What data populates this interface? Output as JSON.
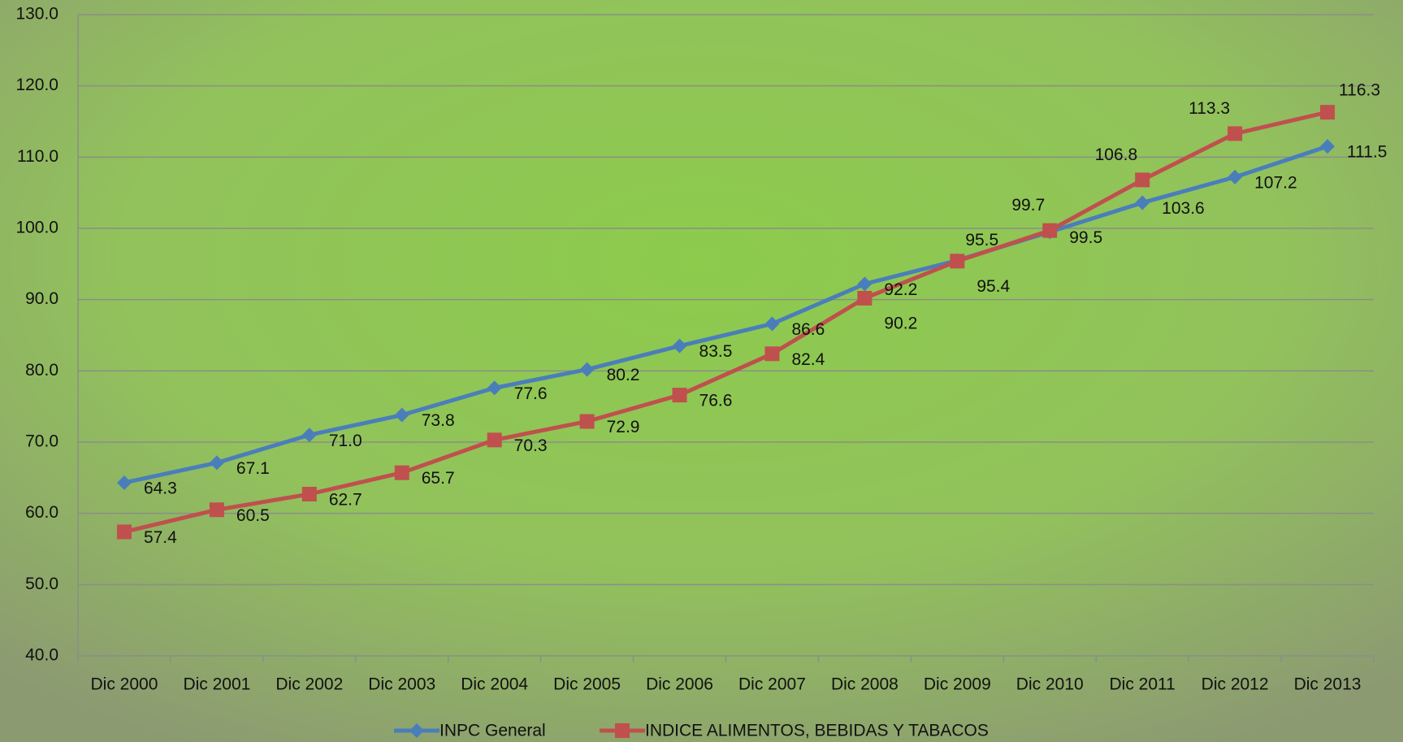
{
  "chart_data": {
    "type": "line",
    "categories": [
      "Dic 2000",
      "Dic 2001",
      "Dic 2002",
      "Dic 2003",
      "Dic 2004",
      "Dic 2005",
      "Dic 2006",
      "Dic 2007",
      "Dic 2008",
      "Dic 2009",
      "Dic 2010",
      "Dic 2011",
      "Dic 2012",
      "Dic 2013"
    ],
    "series": [
      {
        "name": "INPC General",
        "color": "#4a7ebb",
        "marker": "diamond",
        "values": [
          64.3,
          67.1,
          71.0,
          73.8,
          77.6,
          80.2,
          83.5,
          86.6,
          92.2,
          95.5,
          99.5,
          103.6,
          107.2,
          111.5
        ],
        "value_labels": [
          "64.3",
          "67.1",
          "71.0",
          "73.8",
          "77.6",
          "80.2",
          "83.5",
          "86.6",
          "92.2",
          "95.5",
          "99.5",
          "103.6",
          "107.2",
          "111.5"
        ]
      },
      {
        "name": "INDICE ALIMENTOS, BEBIDAS Y TABACOS",
        "color": "#c0504d",
        "marker": "square",
        "values": [
          57.4,
          60.5,
          62.7,
          65.7,
          70.3,
          72.9,
          76.6,
          82.4,
          90.2,
          95.4,
          99.7,
          106.8,
          113.3,
          116.3
        ],
        "value_labels": [
          "57.4",
          "60.5",
          "62.7",
          "65.7",
          "70.3",
          "72.9",
          "76.6",
          "82.4",
          "90.2",
          "95.4",
          "99.7",
          "106.8",
          "113.3",
          "116.3"
        ]
      }
    ],
    "ylim": [
      40,
      130
    ],
    "yticks": [
      {
        "value": 40,
        "label": "40.0"
      },
      {
        "value": 50,
        "label": "50.0"
      },
      {
        "value": 60,
        "label": "60.0"
      },
      {
        "value": 70,
        "label": "70.0"
      },
      {
        "value": 80,
        "label": "80.0"
      },
      {
        "value": 90,
        "label": "90.0"
      },
      {
        "value": 100,
        "label": "100.0"
      },
      {
        "value": 110,
        "label": "110.0"
      },
      {
        "value": 120,
        "label": "120.0"
      },
      {
        "value": 130,
        "label": "130.0"
      }
    ],
    "grid": true,
    "legend": "bottom"
  }
}
